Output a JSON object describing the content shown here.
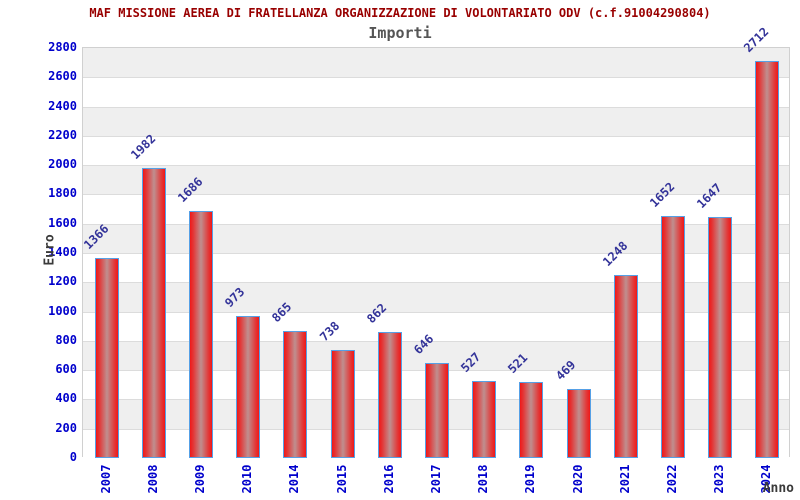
{
  "header": {
    "title": "MAF MISSIONE AEREA DI FRATELLANZA ORGANIZZAZIONE DI VOLONTARIATO ODV (c.f.91004290804)",
    "subtitle": "Importi"
  },
  "chart_data": {
    "type": "bar",
    "title": "MAF MISSIONE AEREA DI FRATELLANZA ORGANIZZAZIONE DI VOLONTARIATO ODV (c.f.91004290804)",
    "subtitle": "Importi",
    "categories": [
      "2007",
      "2008",
      "2009",
      "2010",
      "2014",
      "2015",
      "2016",
      "2017",
      "2018",
      "2019",
      "2020",
      "2021",
      "2022",
      "2023",
      "2024"
    ],
    "values": [
      1366,
      1982,
      1686,
      973,
      865,
      738,
      862,
      646,
      527,
      521,
      469,
      1248,
      1652,
      1647,
      2712
    ],
    "xlabel": "Anno",
    "ylabel": "Euro",
    "ylim": [
      0,
      2800
    ],
    "yticks": [
      0,
      200,
      400,
      600,
      800,
      1000,
      1200,
      1400,
      1600,
      1800,
      2000,
      2200,
      2400,
      2600,
      2800
    ],
    "grid": "horizontal, alternating shaded bands",
    "legend_position": "none",
    "value_labels_rotation_deg": -45,
    "x_tick_rotation_deg": -90,
    "colors": {
      "title": "#990000",
      "subtitle": "#555555",
      "tick_labels": "#0000cc",
      "value_labels": "#333399",
      "axis_titles": "#3a3a3a",
      "bar_edge": "#f01818",
      "bar_center": "#bf8f8f",
      "bar_border": "#55a0e6",
      "band_shaded": "#efefef",
      "band_plain": "#ffffff",
      "grid_line": "#dcdcdc"
    }
  }
}
